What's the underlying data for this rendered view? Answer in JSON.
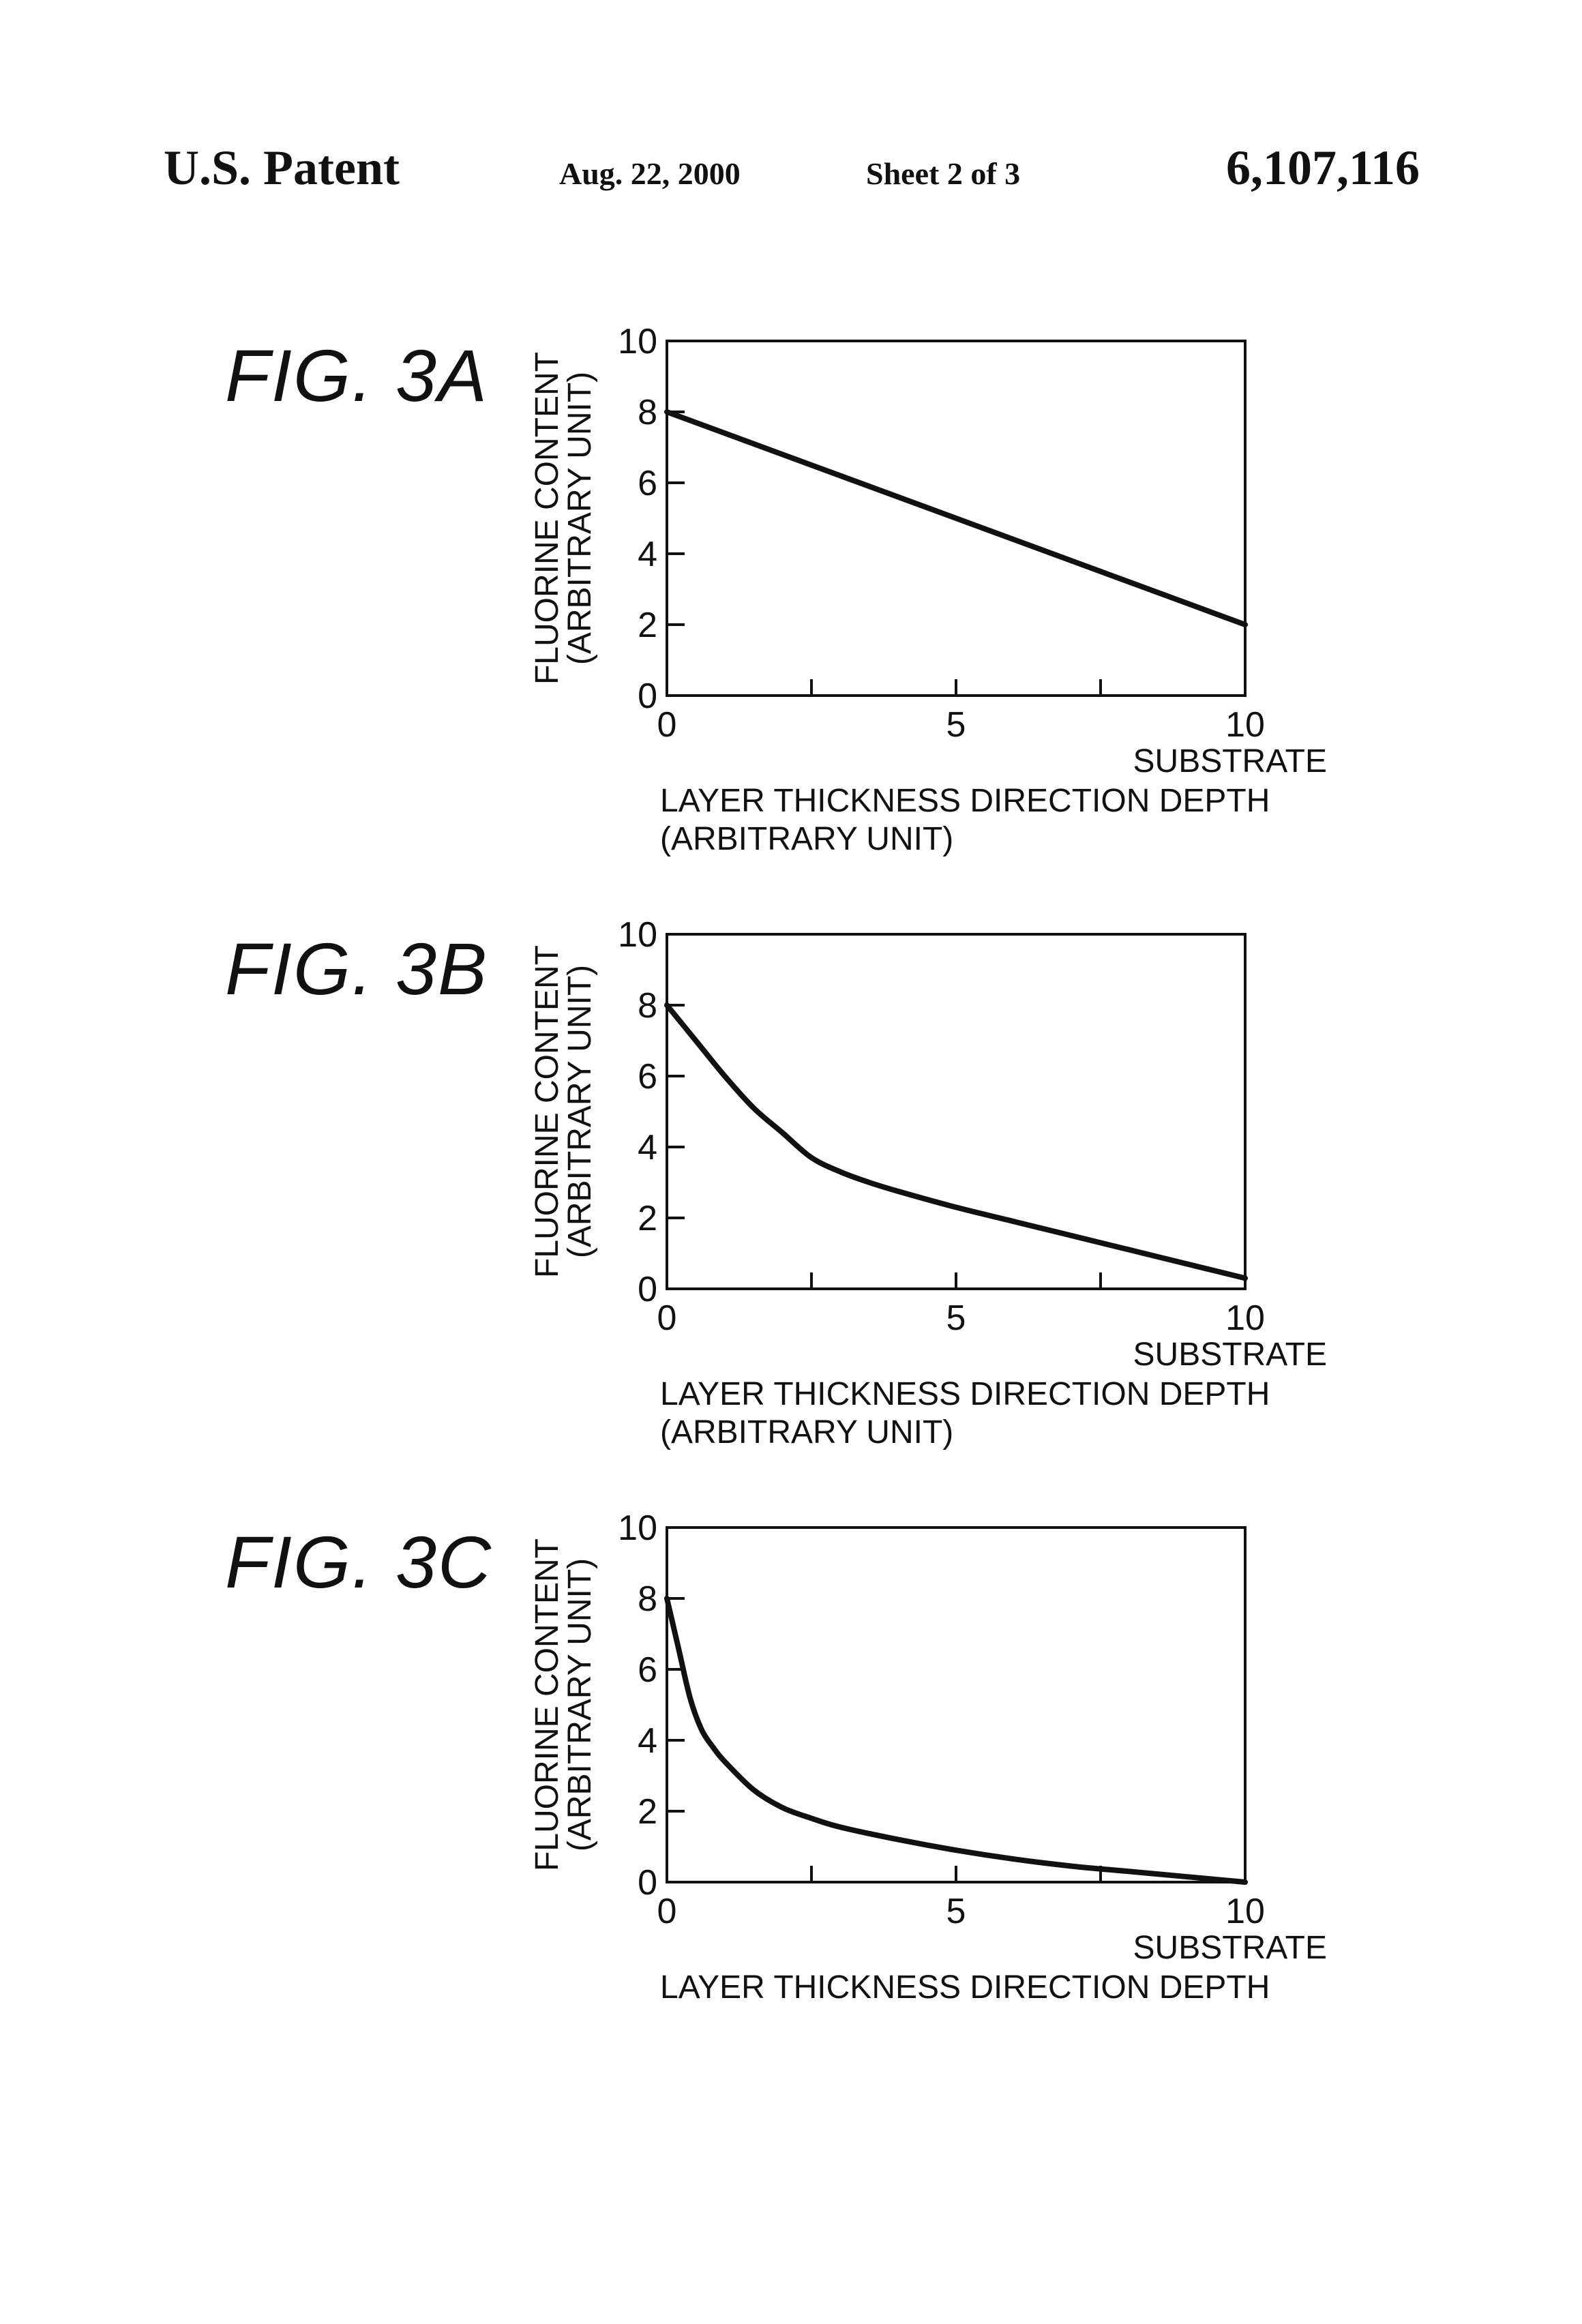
{
  "header": {
    "left": "U.S. Patent",
    "date": "Aug. 22, 2000",
    "sheet": "Sheet 2 of 3",
    "number": "6,107,116"
  },
  "figures": [
    {
      "label": "FIG. 3A"
    },
    {
      "label": "FIG. 3B"
    },
    {
      "label": "FIG. 3C"
    }
  ],
  "chart_data": [
    {
      "type": "line",
      "ylabel": [
        "FLUORINE CONTENT",
        "(ARBITRARY UNIT)"
      ],
      "xlabel": [
        "LAYER THICKNESS DIRECTION DEPTH",
        "(ARBITRARY UNIT)"
      ],
      "x_end_label": "SUBSTRATE",
      "xlim": [
        0,
        10
      ],
      "ylim": [
        0,
        10
      ],
      "x_ticks": [
        0,
        5,
        10
      ],
      "y_ticks": [
        0,
        2,
        4,
        6,
        8,
        10
      ],
      "grid": false,
      "series": [
        {
          "x": [
            0,
            10
          ],
          "y": [
            8,
            2
          ]
        }
      ]
    },
    {
      "type": "line",
      "ylabel": [
        "FLUORINE CONTENT",
        "(ARBITRARY UNIT)"
      ],
      "xlabel": [
        "LAYER THICKNESS DIRECTION DEPTH",
        "(ARBITRARY UNIT)"
      ],
      "x_end_label": "SUBSTRATE",
      "xlim": [
        0,
        10
      ],
      "ylim": [
        0,
        10
      ],
      "x_ticks": [
        0,
        5,
        10
      ],
      "y_ticks": [
        0,
        2,
        4,
        6,
        8,
        10
      ],
      "grid": false,
      "series": [
        {
          "x": [
            0,
            0.5,
            1,
            1.5,
            2,
            2.5,
            3,
            3.5,
            4,
            5,
            6,
            7,
            8,
            9,
            10
          ],
          "y": [
            8,
            7,
            6,
            5.1,
            4.4,
            3.7,
            3.3,
            3.0,
            2.75,
            2.3,
            1.9,
            1.5,
            1.1,
            0.7,
            0.3
          ]
        }
      ]
    },
    {
      "type": "line",
      "ylabel": [
        "FLUORINE CONTENT",
        "(ARBITRARY UNIT)"
      ],
      "xlabel": [
        "LAYER THICKNESS DIRECTION DEPTH"
      ],
      "x_end_label": "SUBSTRATE",
      "xlim": [
        0,
        10
      ],
      "ylim": [
        0,
        10
      ],
      "x_ticks": [
        0,
        5,
        10
      ],
      "y_ticks": [
        0,
        2,
        4,
        6,
        8,
        10
      ],
      "grid": false,
      "series": [
        {
          "x": [
            0,
            0.2,
            0.4,
            0.6,
            0.8,
            1,
            1.5,
            2,
            2.5,
            3,
            4,
            5,
            6,
            7,
            8,
            9,
            10
          ],
          "y": [
            8,
            6.6,
            5.2,
            4.3,
            3.8,
            3.4,
            2.6,
            2.1,
            1.8,
            1.55,
            1.2,
            0.9,
            0.65,
            0.45,
            0.3,
            0.15,
            0
          ]
        }
      ]
    }
  ]
}
